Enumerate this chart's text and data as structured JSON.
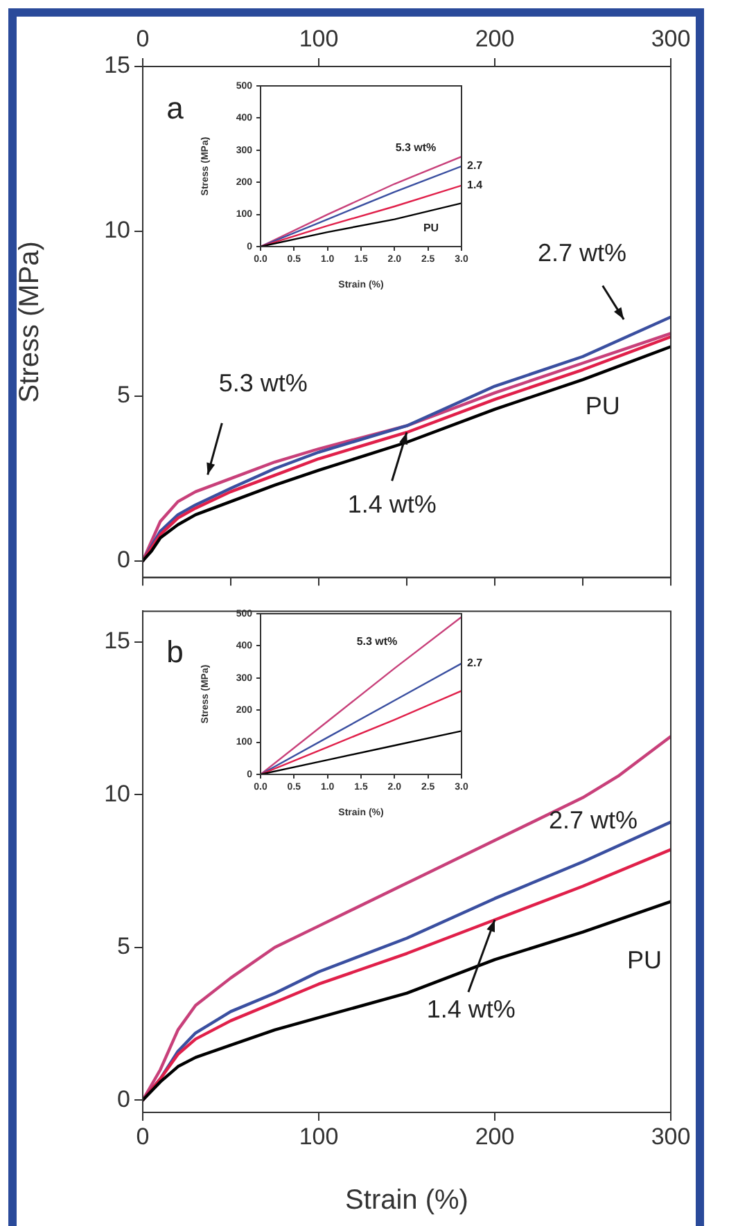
{
  "chart_data": [
    {
      "type": "line",
      "ylabel": "Stress (MPa)",
      "xlim": [
        0,
        300
      ],
      "x2lim": [
        0,
        300
      ],
      "x2ticks": [
        0,
        100,
        200,
        300
      ],
      "ylim": [
        -0.5,
        15
      ],
      "yticks": [
        0,
        5,
        10,
        15
      ],
      "tick_labels": "y",
      "marker": "none",
      "line_style": "solid",
      "annotations": [
        "a",
        "5.3 wt%",
        "2.7 wt%",
        {
          "text": "1.4 wt%",
          "x": 150,
          "y": 3.9
        },
        "PU"
      ],
      "series": [
        {
          "color": "#000000",
          "x": [
            0,
            5,
            10,
            20,
            30,
            50,
            75,
            100,
            150,
            200,
            250,
            300
          ],
          "values": [
            0,
            0.3,
            0.7,
            1.1,
            1.4,
            1.8,
            2.3,
            2.75,
            3.6,
            4.6,
            5.5,
            6.5
          ]
        },
        {
          "color": "#e0204a",
          "x": [
            0,
            10,
            20,
            30,
            50,
            75,
            100,
            150,
            200,
            250,
            300
          ],
          "values": [
            0,
            0.8,
            1.3,
            1.6,
            2.1,
            2.6,
            3.1,
            3.9,
            4.9,
            5.8,
            6.8
          ]
        },
        {
          "color": "#3a4fa0",
          "x": [
            0,
            10,
            20,
            30,
            50,
            75,
            100,
            150,
            200,
            250,
            300
          ],
          "values": [
            0,
            0.9,
            1.4,
            1.7,
            2.2,
            2.8,
            3.3,
            4.1,
            5.3,
            6.2,
            7.4
          ]
        },
        {
          "color": "#c8407a",
          "x": [
            0,
            10,
            20,
            30,
            50,
            75,
            100,
            150,
            200,
            250,
            300
          ],
          "values": [
            0,
            1.2,
            1.8,
            2.1,
            2.5,
            3.0,
            3.4,
            4.1,
            5.1,
            6.0,
            6.9
          ]
        }
      ]
    },
    {
      "type": "line",
      "xlabel": "Strain (%)",
      "ylabel": "Stress (MPa)",
      "xlim": [
        0,
        3
      ],
      "xticks": [
        {
          "value": 0,
          "label": "0.0"
        },
        {
          "value": 0.5,
          "label": "0.5"
        },
        {
          "value": 1,
          "label": "1.0"
        },
        {
          "value": 1.5,
          "label": "1.5"
        },
        {
          "value": 2,
          "label": "2.0"
        },
        {
          "value": 2.5,
          "label": "2.5"
        },
        {
          "value": 3,
          "label": "3.0"
        }
      ],
      "ylim": [
        0,
        500
      ],
      "yticks": [
        0,
        100,
        200,
        300,
        400,
        500
      ],
      "marker": "none",
      "line_style": "solid",
      "series": [
        {
          "name": "PU",
          "color": "#000000",
          "x": [
            0,
            1,
            2,
            3
          ],
          "values": [
            0,
            45,
            85,
            135
          ]
        },
        {
          "name": "1.4",
          "color": "#e0204a",
          "x": [
            0,
            1,
            2,
            3
          ],
          "values": [
            0,
            65,
            125,
            190
          ]
        },
        {
          "name": "2.7",
          "color": "#3a4fa0",
          "x": [
            0,
            1,
            2,
            3
          ],
          "values": [
            0,
            85,
            170,
            250
          ]
        },
        {
          "name": "5.3 wt%",
          "color": "#c8407a",
          "x": [
            0,
            1,
            2,
            3
          ],
          "values": [
            0,
            100,
            195,
            280
          ]
        }
      ]
    },
    {
      "type": "line",
      "xlabel": "Strain (%)",
      "xlim": [
        0,
        300
      ],
      "xticks": [
        0,
        100,
        200,
        300
      ],
      "ylim": [
        -0.4,
        16
      ],
      "yticks": [
        0,
        5,
        10,
        15
      ],
      "marker": "none",
      "line_style": "solid",
      "annotations": [
        "b",
        "2.7 wt%",
        {
          "text": "1.4 wt%",
          "x": 200,
          "y": 5.9
        },
        "PU"
      ],
      "series": [
        {
          "color": "#000000",
          "x": [
            0,
            10,
            20,
            30,
            50,
            75,
            100,
            150,
            200,
            250,
            300
          ],
          "values": [
            0,
            0.6,
            1.1,
            1.4,
            1.8,
            2.3,
            2.7,
            3.5,
            4.6,
            5.5,
            6.5
          ]
        },
        {
          "color": "#e0204a",
          "x": [
            0,
            10,
            20,
            30,
            50,
            75,
            100,
            150,
            200,
            250,
            300
          ],
          "values": [
            0,
            0.7,
            1.5,
            2.0,
            2.6,
            3.2,
            3.8,
            4.8,
            5.9,
            7.0,
            8.2
          ]
        },
        {
          "color": "#3a4fa0",
          "x": [
            0,
            10,
            20,
            30,
            50,
            75,
            100,
            150,
            200,
            250,
            300
          ],
          "values": [
            0,
            0.7,
            1.6,
            2.2,
            2.9,
            3.5,
            4.2,
            5.3,
            6.6,
            7.8,
            9.1
          ]
        },
        {
          "color": "#c8407a",
          "x": [
            0,
            10,
            20,
            30,
            50,
            75,
            100,
            150,
            200,
            250,
            270,
            300
          ],
          "values": [
            0,
            1.0,
            2.3,
            3.1,
            4.0,
            5.0,
            5.7,
            7.1,
            8.5,
            9.9,
            10.6,
            11.9
          ]
        }
      ]
    },
    {
      "type": "line",
      "xlabel": "Strain (%)",
      "ylabel": "Stress (MPa)",
      "xlim": [
        0,
        3
      ],
      "xticks": [
        {
          "value": 0,
          "label": "0.0"
        },
        {
          "value": 0.5,
          "label": "0.5"
        },
        {
          "value": 1,
          "label": "1.0"
        },
        {
          "value": 1.5,
          "label": "1.5"
        },
        {
          "value": 2,
          "label": "2.0"
        },
        {
          "value": 2.5,
          "label": "2.5"
        },
        {
          "value": 3,
          "label": "3.0"
        }
      ],
      "ylim": [
        0,
        500
      ],
      "yticks": [
        0,
        100,
        200,
        300,
        400,
        500
      ],
      "marker": "none",
      "line_style": "solid",
      "series": [
        {
          "color": "#000000",
          "x": [
            0,
            1,
            2,
            3
          ],
          "values": [
            0,
            45,
            90,
            135
          ]
        },
        {
          "color": "#e0204a",
          "x": [
            0,
            1,
            2,
            3
          ],
          "values": [
            0,
            85,
            170,
            260
          ]
        },
        {
          "name": "2.7",
          "color": "#3a4fa0",
          "x": [
            0,
            1,
            2,
            3
          ],
          "values": [
            0,
            115,
            230,
            345
          ]
        },
        {
          "name": "5.3 wt%",
          "color": "#c8407a",
          "x": [
            0,
            1,
            2,
            3
          ],
          "values": [
            0,
            165,
            330,
            490
          ]
        }
      ]
    }
  ]
}
